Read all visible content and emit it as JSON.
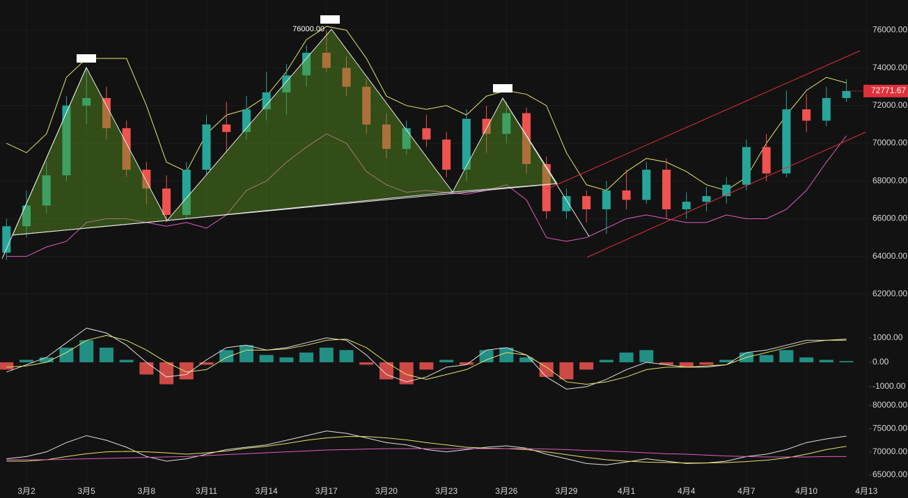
{
  "chart_data": [
    {
      "type": "candlestick",
      "categories": [
        null,
        "3月2",
        null,
        null,
        "3月5",
        null,
        null,
        "3月8",
        null,
        null,
        "3月11",
        null,
        null,
        "3月14",
        null,
        null,
        "3月17",
        null,
        null,
        "3月20",
        null,
        null,
        "3月23",
        null,
        null,
        "3月26",
        null,
        null,
        "3月29",
        null,
        null,
        "4月1",
        null,
        null,
        "4月4",
        null,
        null,
        "4月7",
        null,
        null,
        "4月10",
        null,
        null,
        "4月13"
      ],
      "open": [
        64200,
        65600,
        66700,
        68300,
        72000,
        72400,
        70800,
        68600,
        67600,
        66200,
        68600,
        71000,
        70600,
        71800,
        72700,
        73600,
        74800,
        74000,
        73000,
        71000,
        69700,
        70800,
        70200,
        68600,
        71300,
        70500,
        71600,
        68900,
        66400,
        67200,
        66500,
        67500,
        67000,
        68600,
        66500,
        66900,
        67200,
        67800,
        69800,
        68400,
        71800,
        71200,
        72400,
        null
      ],
      "high": [
        66000,
        67500,
        69000,
        72500,
        74000,
        73000,
        71200,
        69000,
        68300,
        69000,
        71500,
        72200,
        72500,
        73800,
        74200,
        75200,
        76000,
        74600,
        73400,
        71600,
        71200,
        71500,
        70600,
        71800,
        72000,
        72200,
        71900,
        69300,
        67600,
        67500,
        68000,
        68600,
        69000,
        69200,
        67400,
        67700,
        68200,
        70200,
        70500,
        72800,
        72600,
        73000,
        73400,
        null
      ],
      "low": [
        63800,
        65000,
        66300,
        68000,
        71000,
        70200,
        68200,
        66800,
        65800,
        66000,
        68300,
        69500,
        70200,
        71200,
        71500,
        73000,
        73800,
        72500,
        70500,
        69200,
        69400,
        69800,
        68200,
        68000,
        69500,
        70000,
        68400,
        66000,
        66000,
        65800,
        65200,
        66500,
        66800,
        66000,
        66000,
        66400,
        66800,
        67500,
        68000,
        68200,
        70600,
        70900,
        72200,
        null
      ],
      "close": [
        65600,
        66700,
        68300,
        72000,
        72400,
        70800,
        68600,
        67600,
        66200,
        68600,
        71000,
        70600,
        71800,
        72700,
        73600,
        74800,
        74000,
        73000,
        71000,
        69700,
        70800,
        70200,
        68600,
        71300,
        70500,
        71600,
        68900,
        66400,
        67200,
        66500,
        67500,
        67000,
        68600,
        66500,
        66900,
        67200,
        67800,
        69800,
        68400,
        71800,
        71200,
        72400,
        72772,
        null
      ],
      "up_color": "#26a69a",
      "down_color": "#ef5350",
      "series": [
        {
          "color": "#e8e46a",
          "values": [
            70000,
            69500,
            70500,
            73500,
            74500,
            74500,
            74500,
            72000,
            69000,
            68500,
            70500,
            71500,
            71800,
            72500,
            73800,
            75500,
            76200,
            76000,
            74500,
            72500,
            72000,
            71800,
            72000,
            71500,
            72500,
            72800,
            72600,
            72000,
            69500,
            67800,
            67500,
            68500,
            69200,
            69000,
            68500,
            67800,
            67500,
            68200,
            70000,
            71500,
            72800,
            73500,
            73200,
            null
          ]
        },
        {
          "color": "#e05fc0",
          "values": [
            64000,
            64000,
            64500,
            64800,
            65800,
            66000,
            66000,
            65800,
            65600,
            65800,
            65500,
            66200,
            67500,
            68000,
            69000,
            69800,
            70500,
            70000,
            68500,
            67800,
            67400,
            67500,
            67400,
            67300,
            67500,
            67800,
            67000,
            65000,
            64800,
            65000,
            65500,
            66000,
            66200,
            66000,
            65800,
            65800,
            66200,
            66000,
            66000,
            66500,
            67500,
            69000,
            70400,
            null
          ]
        }
      ],
      "annotation": "76000.00",
      "last_price": 72771.67,
      "ylim": [
        61000,
        77600
      ],
      "yticks": [
        {
          "value": 76000,
          "label": "76000.00"
        },
        {
          "value": 74000,
          "label": "74000.00"
        },
        {
          "value": 72000,
          "label": "72000.00"
        },
        {
          "value": 70000,
          "label": "70000.00"
        },
        {
          "value": 68000,
          "label": "68000.00"
        },
        {
          "value": 66000,
          "label": "66000.00"
        },
        {
          "value": 64000,
          "label": "64000.00"
        },
        {
          "value": 62000,
          "label": "62000.00"
        }
      ],
      "grid": true
    },
    {
      "type": "macd",
      "up_color": "#26a69a",
      "down_color": "#ef5350",
      "series": [
        {
          "type": "bar",
          "values": [
            -300,
            100,
            200,
            600,
            900,
            600,
            100,
            -500,
            -900,
            -700,
            -100,
            500,
            700,
            300,
            200,
            400,
            600,
            500,
            -100,
            -700,
            -900,
            -300,
            100,
            -100,
            500,
            600,
            200,
            -600,
            -700,
            -300,
            100,
            400,
            500,
            -100,
            -200,
            -100,
            100,
            400,
            300,
            500,
            200,
            100,
            50,
            null
          ]
        },
        {
          "type": "line",
          "color": "#e0e0e0",
          "values": [
            -400,
            -100,
            200,
            800,
            1400,
            1200,
            700,
            0,
            -600,
            -500,
            100,
            600,
            700,
            500,
            600,
            800,
            1000,
            900,
            300,
            -500,
            -800,
            -600,
            -200,
            -100,
            500,
            600,
            300,
            -600,
            -1100,
            -1000,
            -700,
            -300,
            0,
            -100,
            -200,
            -200,
            -100,
            400,
            500,
            700,
            900,
            900,
            950,
            null
          ]
        },
        {
          "type": "line",
          "color": "#e8e46a",
          "values": [
            -200,
            -150,
            0,
            400,
            900,
            1100,
            900,
            500,
            0,
            -400,
            -300,
            200,
            500,
            500,
            550,
            700,
            900,
            950,
            600,
            0,
            -500,
            -700,
            -500,
            -300,
            100,
            400,
            300,
            -200,
            -800,
            -900,
            -800,
            -600,
            -300,
            -200,
            -200,
            -150,
            -100,
            200,
            400,
            600,
            800,
            900,
            900,
            null
          ]
        }
      ],
      "ylim": [
        -1400,
        1450
      ],
      "yticks": [
        {
          "value": 1000,
          "label": "1000.00"
        },
        {
          "value": 0,
          "label": "0.00"
        },
        {
          "value": -1000,
          "label": "-1000.00"
        }
      ]
    },
    {
      "type": "line",
      "series": [
        {
          "color": "#e0e0e0",
          "values": [
            68500,
            69000,
            70000,
            72000,
            73500,
            72500,
            71000,
            69000,
            68000,
            68500,
            69500,
            70500,
            71000,
            71500,
            72500,
            73500,
            74500,
            74000,
            73000,
            72000,
            71500,
            70500,
            70000,
            70500,
            71000,
            71300,
            70800,
            69500,
            68500,
            67500,
            67200,
            67800,
            68500,
            68000,
            67500,
            67600,
            68000,
            69000,
            69500,
            70500,
            72000,
            72800,
            73400,
            null
          ]
        },
        {
          "color": "#e8e46a",
          "values": [
            68000,
            68000,
            68300,
            69000,
            69600,
            70000,
            70100,
            70000,
            69800,
            69500,
            69800,
            70200,
            70800,
            71200,
            71800,
            72500,
            73000,
            73300,
            73300,
            73000,
            72600,
            72000,
            71500,
            71000,
            70800,
            70700,
            70500,
            70000,
            69400,
            68800,
            68300,
            68000,
            67800,
            67700,
            67600,
            67600,
            67700,
            67900,
            68200,
            68700,
            69500,
            70500,
            71200,
            null
          ]
        },
        {
          "color": "#e05fc0",
          "values": [
            68300,
            68300,
            68300,
            68400,
            68500,
            68600,
            68700,
            68800,
            68900,
            69000,
            69200,
            69400,
            69600,
            69800,
            70000,
            70200,
            70400,
            70500,
            70600,
            70700,
            70700,
            70700,
            70700,
            70700,
            70700,
            70700,
            70700,
            70600,
            70500,
            70300,
            70200,
            70000,
            69800,
            69600,
            69500,
            69300,
            69100,
            69000,
            68900,
            68900,
            68900,
            69000,
            69000,
            null
          ]
        }
      ],
      "ylim": [
        62450,
        81200
      ],
      "yticks": [
        {
          "value": 80000,
          "label": "80000.00"
        },
        {
          "value": 75000,
          "label": "75000.00"
        },
        {
          "value": 70000,
          "label": "70000.00"
        },
        {
          "value": 65000,
          "label": "65000.00"
        }
      ]
    }
  ]
}
